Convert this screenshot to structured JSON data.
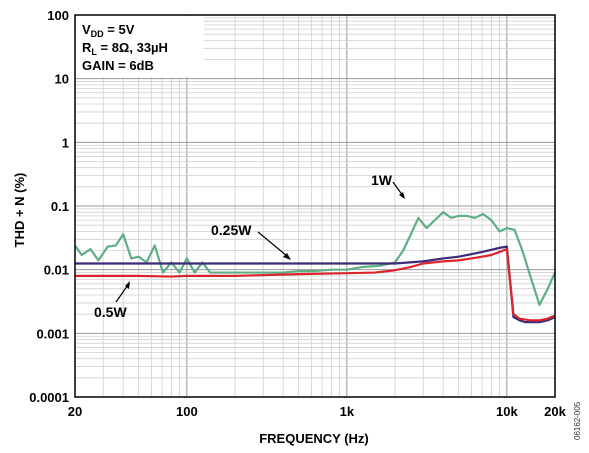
{
  "chart_data": {
    "type": "line",
    "xlabel": "FREQUENCY (Hz)",
    "ylabel": "THD + N (%)",
    "xscale": "log",
    "yscale": "log",
    "xlim": [
      20,
      20000
    ],
    "ylim": [
      0.0001,
      100
    ],
    "grid": true,
    "x_ticks": [
      {
        "value": 20,
        "label": "20"
      },
      {
        "value": 100,
        "label": "100"
      },
      {
        "value": 1000,
        "label": "1k"
      },
      {
        "value": 10000,
        "label": "10k"
      },
      {
        "value": 20000,
        "label": "20k"
      }
    ],
    "y_ticks": [
      {
        "value": 100,
        "label": "100"
      },
      {
        "value": 10,
        "label": "10"
      },
      {
        "value": 1,
        "label": "1"
      },
      {
        "value": 0.1,
        "label": "0.1"
      },
      {
        "value": 0.01,
        "label": "0.01"
      },
      {
        "value": 0.001,
        "label": "0.001"
      },
      {
        "value": 0.0001,
        "label": "0.0001"
      }
    ],
    "conditions": {
      "vdd": {
        "main": "V",
        "sub": "DD",
        "rest": " = 5V"
      },
      "rl": {
        "main": "R",
        "sub": "L",
        "rest": " = 8Ω, 33µH"
      },
      "gain": "GAIN = 6dB"
    },
    "series": [
      {
        "name": "1W",
        "color": "#5fae86",
        "x": [
          20,
          22,
          25,
          28,
          32,
          36,
          40,
          45,
          50,
          56,
          63,
          71,
          80,
          90,
          100,
          112,
          125,
          140,
          160,
          180,
          200,
          250,
          315,
          400,
          500,
          630,
          800,
          1000,
          1250,
          1600,
          2000,
          2250,
          2500,
          2800,
          3150,
          3550,
          4000,
          4500,
          5000,
          5600,
          6300,
          7100,
          8000,
          9000,
          10000,
          11200,
          12500,
          14000,
          16000,
          18000,
          20000
        ],
        "y": [
          0.024,
          0.017,
          0.021,
          0.014,
          0.023,
          0.024,
          0.036,
          0.015,
          0.016,
          0.013,
          0.024,
          0.009,
          0.013,
          0.009,
          0.015,
          0.009,
          0.013,
          0.009,
          0.009,
          0.009,
          0.009,
          0.009,
          0.009,
          0.009,
          0.0095,
          0.0095,
          0.01,
          0.01,
          0.011,
          0.0115,
          0.013,
          0.02,
          0.035,
          0.065,
          0.045,
          0.06,
          0.08,
          0.065,
          0.07,
          0.07,
          0.065,
          0.075,
          0.06,
          0.04,
          0.045,
          0.042,
          0.02,
          0.008,
          0.0028,
          0.005,
          0.009
        ]
      },
      {
        "name": "0.25W",
        "color": "#3d2a78",
        "x": [
          20,
          30,
          50,
          100,
          200,
          300,
          500,
          1000,
          2000,
          3000,
          4000,
          5000,
          6000,
          7000,
          8000,
          9000,
          10000,
          11000,
          12000,
          13000,
          14000,
          16000,
          18000,
          20000
        ],
        "y": [
          0.0125,
          0.0125,
          0.0125,
          0.0125,
          0.0125,
          0.0125,
          0.0125,
          0.0125,
          0.0125,
          0.0135,
          0.015,
          0.016,
          0.0175,
          0.019,
          0.0205,
          0.022,
          0.023,
          0.0018,
          0.0016,
          0.0015,
          0.0015,
          0.0015,
          0.0016,
          0.0018
        ]
      },
      {
        "name": "0.5W",
        "color": "#d9262d",
        "x": [
          20,
          30,
          50,
          80,
          100,
          200,
          500,
          1000,
          1500,
          2000,
          2500,
          3000,
          4000,
          5000,
          6000,
          7000,
          8000,
          9000,
          10000,
          11000,
          12000,
          14000,
          16000,
          18000,
          20000
        ],
        "y": [
          0.008,
          0.008,
          0.008,
          0.0078,
          0.008,
          0.008,
          0.0085,
          0.0088,
          0.009,
          0.0098,
          0.011,
          0.0125,
          0.0135,
          0.014,
          0.015,
          0.016,
          0.017,
          0.019,
          0.021,
          0.002,
          0.0017,
          0.0016,
          0.0016,
          0.0017,
          0.0019
        ]
      }
    ],
    "annotations": [
      {
        "text": "1W",
        "series": "1W"
      },
      {
        "text": "0.25W",
        "series": "0.25W"
      },
      {
        "text": "0.5W",
        "series": "0.5W"
      }
    ],
    "doc_id": "06162-005"
  }
}
